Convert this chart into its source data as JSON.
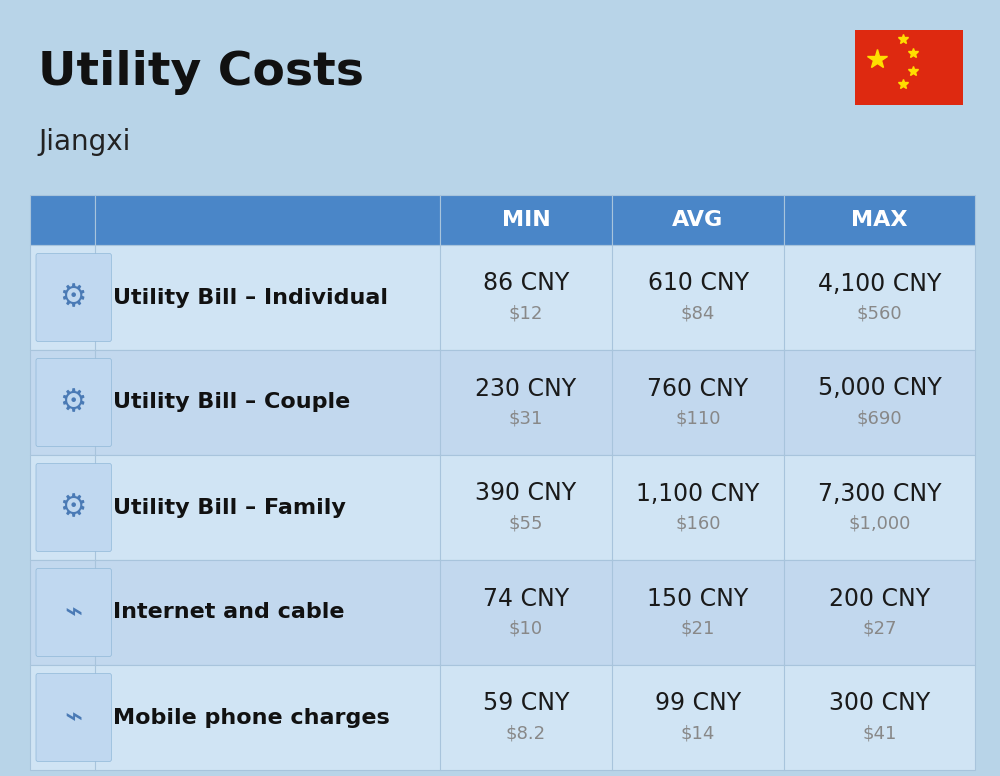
{
  "title": "Utility Costs",
  "subtitle": "Jiangxi",
  "bg_color": "#b8d4e8",
  "header_color": "#4a86c8",
  "row_color_light": "#d0e4f4",
  "row_color_dark": "#c2d8ee",
  "header_text_color": "#ffffff",
  "label_text_color": "#111111",
  "value_text_color": "#1a1a1a",
  "usd_text_color": "#888888",
  "grid_color": "#a8c4dc",
  "rows": [
    {
      "label": "Utility Bill – Individual",
      "min_cny": "86 CNY",
      "min_usd": "$12",
      "avg_cny": "610 CNY",
      "avg_usd": "$84",
      "max_cny": "4,100 CNY",
      "max_usd": "$560"
    },
    {
      "label": "Utility Bill – Couple",
      "min_cny": "230 CNY",
      "min_usd": "$31",
      "avg_cny": "760 CNY",
      "avg_usd": "$110",
      "max_cny": "5,000 CNY",
      "max_usd": "$690"
    },
    {
      "label": "Utility Bill – Family",
      "min_cny": "390 CNY",
      "min_usd": "$55",
      "avg_cny": "1,100 CNY",
      "avg_usd": "$160",
      "max_cny": "7,300 CNY",
      "max_usd": "$1,000"
    },
    {
      "label": "Internet and cable",
      "min_cny": "74 CNY",
      "min_usd": "$10",
      "avg_cny": "150 CNY",
      "avg_usd": "$21",
      "max_cny": "200 CNY",
      "max_usd": "$27"
    },
    {
      "label": "Mobile phone charges",
      "min_cny": "59 CNY",
      "min_usd": "$8.2",
      "avg_cny": "99 CNY",
      "avg_usd": "$14",
      "max_cny": "300 CNY",
      "max_usd": "$41"
    }
  ],
  "title_fontsize": 34,
  "subtitle_fontsize": 20,
  "header_fontsize": 16,
  "label_fontsize": 16,
  "value_fontsize": 17,
  "usd_fontsize": 13,
  "flag_color": "#DE2910",
  "star_color": "#FFDE00"
}
